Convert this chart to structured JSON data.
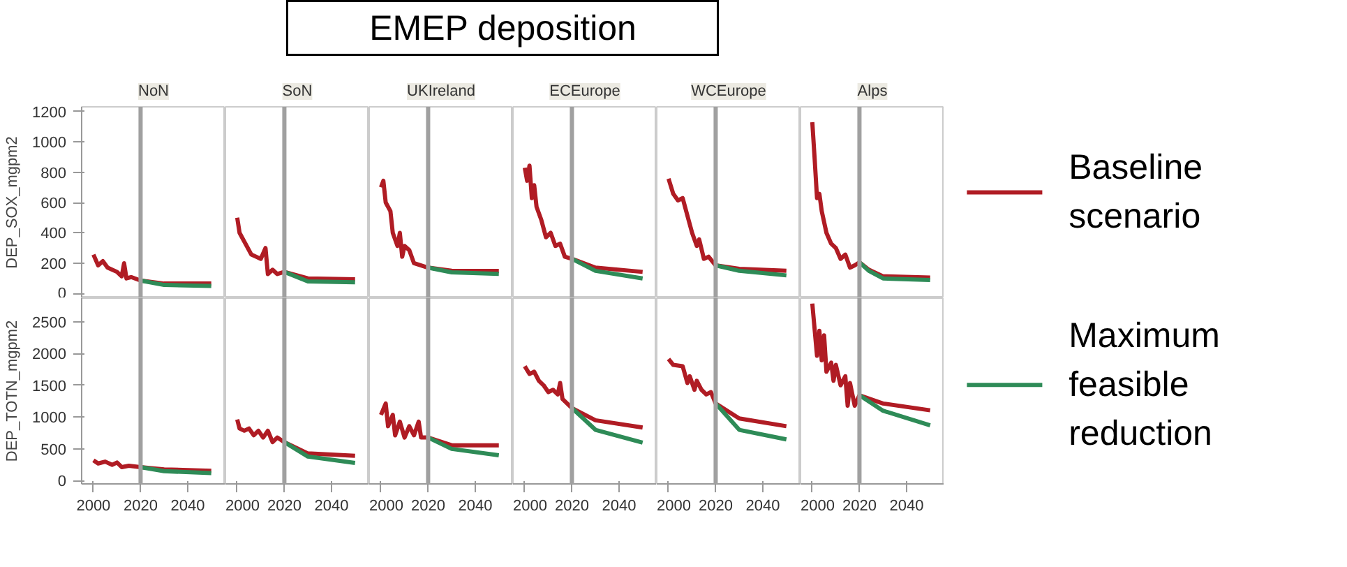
{
  "chart_data": [
    {
      "type": "other",
      "title": "EMEP deposition"
    },
    {
      "type": "line",
      "title": "NoN",
      "ylabel": "DEP_SOX_mgpm2",
      "xlim": [
        1995,
        2056
      ],
      "xticks": [
        2000,
        2020,
        2040
      ],
      "ylim": [
        -30,
        1230
      ],
      "yticks": [
        0,
        200,
        400,
        600,
        800,
        1000,
        1200
      ],
      "tick_labels": "y",
      "ref_lines": [
        {
          "axis": "x",
          "value": 2020,
          "color": "#a0a0a0"
        }
      ],
      "series": [
        {
          "color": "#b01c24",
          "x": [
            2000,
            2002,
            2004,
            2006,
            2010,
            2012,
            2013,
            2014,
            2016,
            2020,
            2030,
            2050
          ],
          "values": [
            257,
            186,
            214,
            171,
            143,
            114,
            200,
            100,
            109,
            86,
            66,
            66
          ]
        },
        {
          "color": "#2e8b57",
          "x": [
            2020,
            2030,
            2050
          ],
          "values": [
            86,
            57,
            50
          ]
        }
      ]
    },
    {
      "type": "line",
      "title": "SoN",
      "xlim": [
        1995,
        2056
      ],
      "xticks": [
        2000,
        2020,
        2040
      ],
      "ylim": [
        -30,
        1230
      ],
      "yticks": [
        0,
        200,
        400,
        600,
        800,
        1000,
        1200
      ],
      "tick_labels": false,
      "ref_lines": [
        {
          "axis": "x",
          "value": 2020,
          "color": "#a0a0a0"
        }
      ],
      "series": [
        {
          "color": "#b01c24",
          "x": [
            2000,
            2001,
            2004,
            2006,
            2008,
            2010,
            2012,
            2013,
            2015,
            2017,
            2020,
            2030,
            2050
          ],
          "values": [
            500,
            400,
            314,
            257,
            243,
            229,
            300,
            129,
            157,
            129,
            143,
            100,
            94
          ]
        },
        {
          "color": "#2e8b57",
          "x": [
            2020,
            2030,
            2050
          ],
          "values": [
            143,
            80,
            75
          ]
        }
      ]
    },
    {
      "type": "line",
      "title": "UKIreland",
      "xlim": [
        1995,
        2056
      ],
      "xticks": [
        2000,
        2020,
        2040
      ],
      "ylim": [
        -30,
        1230
      ],
      "yticks": [
        0,
        200,
        400,
        600,
        800,
        1000,
        1200
      ],
      "tick_labels": false,
      "ref_lines": [
        {
          "axis": "x",
          "value": 2020,
          "color": "#a0a0a0"
        }
      ],
      "series": [
        {
          "color": "#b01c24",
          "x": [
            2000,
            2001,
            2002,
            2004,
            2005,
            2007,
            2008,
            2009,
            2010,
            2012,
            2014,
            2020,
            2030,
            2050
          ],
          "values": [
            700,
            743,
            600,
            543,
            400,
            314,
            400,
            243,
            314,
            286,
            200,
            171,
            151,
            149
          ]
        },
        {
          "color": "#2e8b57",
          "x": [
            2020,
            2030,
            2050
          ],
          "values": [
            171,
            140,
            130
          ]
        }
      ]
    },
    {
      "type": "line",
      "title": "ECEurope",
      "xlim": [
        1995,
        2056
      ],
      "xticks": [
        2000,
        2020,
        2040
      ],
      "ylim": [
        -30,
        1230
      ],
      "yticks": [
        0,
        200,
        400,
        600,
        800,
        1000,
        1200
      ],
      "tick_labels": false,
      "ref_lines": [
        {
          "axis": "x",
          "value": 2020,
          "color": "#a0a0a0"
        }
      ],
      "series": [
        {
          "color": "#b01c24",
          "x": [
            2000,
            2001,
            2002,
            2003,
            2004,
            2005,
            2007,
            2009,
            2011,
            2013,
            2015,
            2017,
            2020,
            2030,
            2050
          ],
          "values": [
            829,
            743,
            843,
            629,
            714,
            571,
            486,
            371,
            400,
            314,
            329,
            243,
            229,
            171,
            143
          ]
        },
        {
          "color": "#2e8b57",
          "x": [
            2020,
            2030,
            2050
          ],
          "values": [
            229,
            150,
            100
          ]
        }
      ]
    },
    {
      "type": "line",
      "title": "WCEurope",
      "xlim": [
        1995,
        2056
      ],
      "xticks": [
        2000,
        2020,
        2040
      ],
      "ylim": [
        -30,
        1230
      ],
      "yticks": [
        0,
        200,
        400,
        600,
        800,
        1000,
        1200
      ],
      "tick_labels": false,
      "ref_lines": [
        {
          "axis": "x",
          "value": 2020,
          "color": "#a0a0a0"
        }
      ],
      "series": [
        {
          "color": "#b01c24",
          "x": [
            2000,
            2002,
            2004,
            2006,
            2008,
            2010,
            2012,
            2013,
            2015,
            2017,
            2020,
            2030,
            2050
          ],
          "values": [
            757,
            657,
            614,
            629,
            514,
            400,
            314,
            357,
            229,
            243,
            186,
            163,
            151
          ]
        },
        {
          "color": "#2e8b57",
          "x": [
            2020,
            2030,
            2050
          ],
          "values": [
            186,
            150,
            120
          ]
        }
      ]
    },
    {
      "type": "line",
      "title": "Alps",
      "xlim": [
        1995,
        2056
      ],
      "xticks": [
        2000,
        2020,
        2040
      ],
      "ylim": [
        -30,
        1230
      ],
      "yticks": [
        0,
        200,
        400,
        600,
        800,
        1000,
        1200
      ],
      "tick_labels": false,
      "legend": "right",
      "ref_lines": [
        {
          "axis": "x",
          "value": 2020,
          "color": "#a0a0a0"
        }
      ],
      "series": [
        {
          "name": "Baseline scenario",
          "color": "#b01c24",
          "x": [
            2000,
            2001,
            2002,
            2003,
            2004,
            2006,
            2008,
            2010,
            2012,
            2014,
            2016,
            2018,
            2020,
            2024,
            2030,
            2050
          ],
          "values": [
            1129,
            886,
            629,
            657,
            543,
            400,
            329,
            300,
            229,
            257,
            171,
            186,
            206,
            157,
            114,
            106
          ]
        },
        {
          "color": "#2e8b57",
          "x": [
            2020,
            2024,
            2030,
            2050
          ],
          "values": [
            206,
            150,
            100,
            90
          ]
        }
      ]
    },
    {
      "type": "line",
      "ylabel": "DEP_TOTN_mgpm2",
      "xlim": [
        1995,
        2056
      ],
      "xticks": [
        2000,
        2020,
        2040
      ],
      "ylim": [
        -50,
        2870
      ],
      "yticks": [
        0,
        500,
        1000,
        1500,
        2000,
        2500
      ],
      "ref_lines": [
        {
          "axis": "x",
          "value": 2020,
          "color": "#a0a0a0"
        }
      ],
      "series": [
        {
          "color": "#b01c24",
          "x": [
            2000,
            2002,
            2005,
            2008,
            2010,
            2012,
            2015,
            2020,
            2030,
            2050
          ],
          "values": [
            321,
            271,
            300,
            250,
            286,
            214,
            236,
            214,
            179,
            157
          ]
        },
        {
          "color": "#2e8b57",
          "x": [
            2020,
            2030,
            2050
          ],
          "values": [
            214,
            150,
            120
          ]
        }
      ]
    },
    {
      "type": "line",
      "xlim": [
        1995,
        2056
      ],
      "xticks": [
        2000,
        2020,
        2040
      ],
      "ylim": [
        -50,
        2870
      ],
      "yticks": [
        0,
        500,
        1000,
        1500,
        2000,
        2500
      ],
      "tick_labels": "x",
      "ref_lines": [
        {
          "axis": "x",
          "value": 2020,
          "color": "#a0a0a0"
        }
      ],
      "series": [
        {
          "color": "#b01c24",
          "x": [
            2000,
            2001,
            2003,
            2005,
            2007,
            2009,
            2011,
            2013,
            2015,
            2017,
            2020,
            2030,
            2050
          ],
          "values": [
            964,
            821,
            786,
            821,
            714,
            786,
            679,
            786,
            607,
            679,
            607,
            429,
            393
          ]
        },
        {
          "color": "#2e8b57",
          "x": [
            2020,
            2030,
            2050
          ],
          "values": [
            607,
            380,
            280
          ]
        }
      ]
    },
    {
      "type": "line",
      "xlim": [
        1995,
        2056
      ],
      "xticks": [
        2000,
        2020,
        2040
      ],
      "ylim": [
        -50,
        2870
      ],
      "yticks": [
        0,
        500,
        1000,
        1500,
        2000,
        2500
      ],
      "tick_labels": "x",
      "ref_lines": [
        {
          "axis": "x",
          "value": 2020,
          "color": "#a0a0a0"
        }
      ],
      "series": [
        {
          "color": "#b01c24",
          "x": [
            2000,
            2002,
            2003,
            2005,
            2006,
            2008,
            2010,
            2012,
            2014,
            2016,
            2017,
            2020,
            2030,
            2050
          ],
          "values": [
            1036,
            1214,
            857,
            1036,
            714,
            929,
            679,
            857,
            714,
            929,
            679,
            679,
            557,
            557
          ]
        },
        {
          "color": "#2e8b57",
          "x": [
            2020,
            2030,
            2050
          ],
          "values": [
            679,
            500,
            400
          ]
        }
      ]
    },
    {
      "type": "line",
      "xlim": [
        1995,
        2056
      ],
      "xticks": [
        2000,
        2020,
        2040
      ],
      "ylim": [
        -50,
        2870
      ],
      "yticks": [
        0,
        500,
        1000,
        1500,
        2000,
        2500
      ],
      "tick_labels": "x",
      "ref_lines": [
        {
          "axis": "x",
          "value": 2020,
          "color": "#a0a0a0"
        }
      ],
      "series": [
        {
          "color": "#b01c24",
          "x": [
            2000,
            2002,
            2004,
            2006,
            2008,
            2010,
            2012,
            2014,
            2015,
            2016,
            2020,
            2030,
            2050
          ],
          "values": [
            1800,
            1679,
            1714,
            1571,
            1500,
            1393,
            1429,
            1357,
            1536,
            1286,
            1143,
            950,
            836
          ]
        },
        {
          "color": "#2e8b57",
          "x": [
            2020,
            2030,
            2050
          ],
          "values": [
            1143,
            800,
            600
          ]
        }
      ]
    },
    {
      "type": "line",
      "xlim": [
        1995,
        2056
      ],
      "xticks": [
        2000,
        2020,
        2040
      ],
      "ylim": [
        -50,
        2870
      ],
      "yticks": [
        0,
        500,
        1000,
        1500,
        2000,
        2500
      ],
      "tick_labels": "x",
      "ref_lines": [
        {
          "axis": "x",
          "value": 2020,
          "color": "#a0a0a0"
        }
      ],
      "series": [
        {
          "color": "#b01c24",
          "x": [
            2000,
            2002,
            2006,
            2008,
            2009,
            2011,
            2012,
            2014,
            2016,
            2018,
            2020,
            2030,
            2050
          ],
          "values": [
            1914,
            1821,
            1800,
            1536,
            1643,
            1429,
            1571,
            1429,
            1357,
            1393,
            1214,
            979,
            857
          ]
        },
        {
          "color": "#2e8b57",
          "x": [
            2020,
            2030,
            2050
          ],
          "values": [
            1214,
            800,
            650
          ]
        }
      ]
    },
    {
      "type": "line",
      "xlim": [
        1995,
        2056
      ],
      "xticks": [
        2000,
        2020,
        2040
      ],
      "ylim": [
        -50,
        2870
      ],
      "yticks": [
        0,
        500,
        1000,
        1500,
        2000,
        2500
      ],
      "tick_labels": "x",
      "legend": "right",
      "ref_lines": [
        {
          "axis": "x",
          "value": 2020,
          "color": "#a0a0a0"
        }
      ],
      "series": [
        {
          "color": "#b01c24",
          "x": [
            2000,
            2002,
            2003,
            2004,
            2005,
            2006,
            2008,
            2009,
            2010,
            2012,
            2014,
            2015,
            2016,
            2018,
            2020,
            2030,
            2050
          ],
          "values": [
            2786,
            1964,
            2357,
            1893,
            2286,
            1714,
            1857,
            1571,
            1821,
            1500,
            1643,
            1179,
            1536,
            1179,
            1343,
            1214,
            1107
          ]
        },
        {
          "name": "Maximum feasible reduction",
          "color": "#2e8b57",
          "x": [
            2020,
            2030,
            2050
          ],
          "values": [
            1343,
            1100,
            870
          ]
        }
      ]
    }
  ]
}
